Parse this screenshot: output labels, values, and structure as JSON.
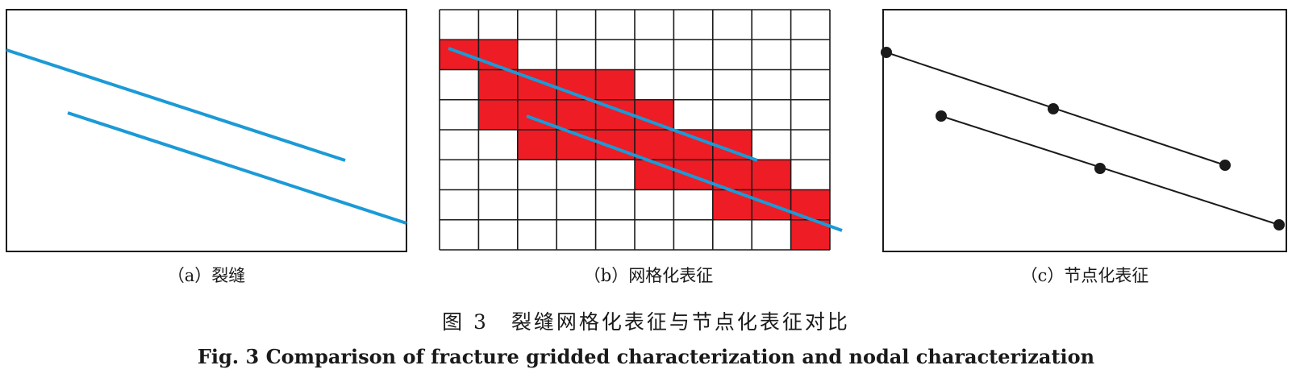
{
  "panels": {
    "a": {
      "caption": "（a）裂缝"
    },
    "b": {
      "caption": "（b）网格化表征"
    },
    "c": {
      "caption": "（c）节点化表征"
    }
  },
  "figure": {
    "caption_cn": "图 3　裂缝网格化表征与节点化表征对比",
    "caption_en": "Fig. 3   Comparison of fracture gridded characterization and nodal characterization"
  },
  "grid": {
    "columns": 10,
    "rows": 8,
    "filled_cells": [
      [
        0,
        1
      ],
      [
        1,
        1
      ],
      [
        1,
        2
      ],
      [
        2,
        2
      ],
      [
        3,
        2
      ],
      [
        4,
        2
      ],
      [
        1,
        3
      ],
      [
        2,
        3
      ],
      [
        3,
        3
      ],
      [
        4,
        3
      ],
      [
        5,
        3
      ],
      [
        2,
        4
      ],
      [
        3,
        4
      ],
      [
        4,
        4
      ],
      [
        5,
        4
      ],
      [
        6,
        4
      ],
      [
        7,
        4
      ],
      [
        5,
        5
      ],
      [
        6,
        5
      ],
      [
        7,
        5
      ],
      [
        8,
        5
      ],
      [
        7,
        6
      ],
      [
        8,
        6
      ],
      [
        9,
        6
      ],
      [
        9,
        7
      ]
    ]
  },
  "colors": {
    "fracture": "#1b9ad6",
    "cell_fill": "#ee1c25",
    "grid_line": "#1a1a1a",
    "node": "#1a1a1a",
    "frame": "#1a1a1a"
  }
}
